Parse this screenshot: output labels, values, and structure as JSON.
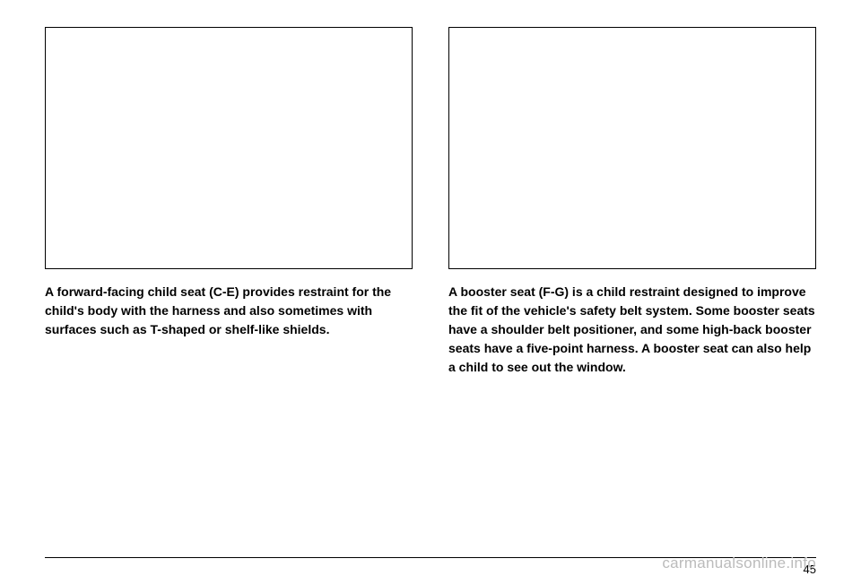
{
  "left_column": {
    "caption": "A forward-facing child seat (C-E) provides restraint for the child's body with the harness and also sometimes with surfaces such as T-shaped or shelf-like shields."
  },
  "right_column": {
    "caption": "A booster seat (F-G) is a child restraint designed to improve the fit of the vehicle's safety belt system. Some booster seats have a shoulder belt positioner, and some high-back booster seats have a five-point harness. A booster seat can also help a child to see out the window."
  },
  "page_number": "45",
  "watermark": "carmanualsonline.info",
  "image_border_color": "#000000",
  "background_color": "#ffffff",
  "text_color": "#000000",
  "watermark_color": "#bbbbbb",
  "font_size_caption": 14,
  "font_size_page": 13,
  "font_size_watermark": 17
}
